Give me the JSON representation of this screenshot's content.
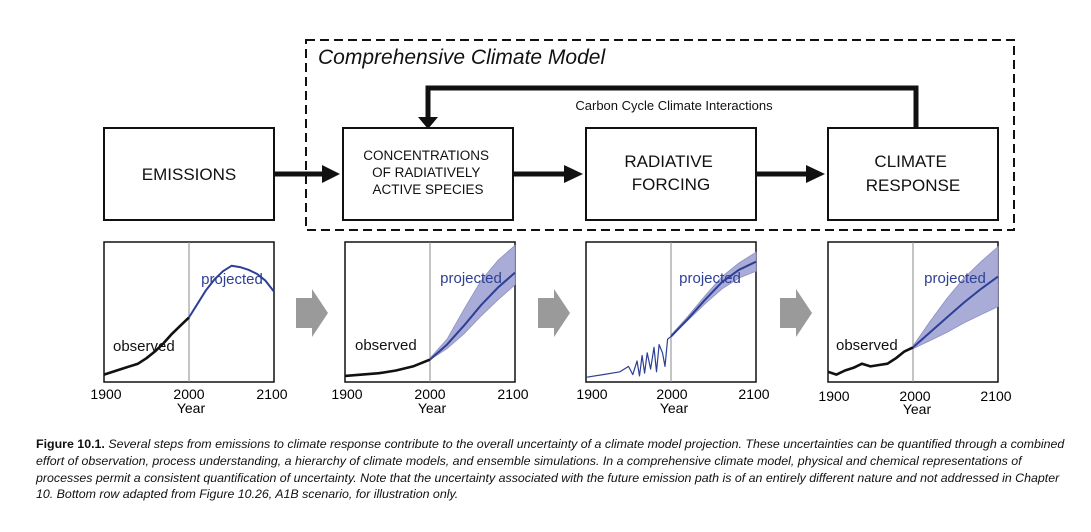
{
  "model": {
    "title": "Comprehensive Climate Model",
    "feedback_label": "Carbon Cycle Climate Interactions"
  },
  "boxes": {
    "emissions": [
      "EMISSIONS"
    ],
    "concentrations": [
      "CONCENTRATIONS",
      "OF RADIATIVELY",
      "ACTIVE SPECIES"
    ],
    "forcing": [
      "RADIATIVE",
      "FORCING"
    ],
    "response": [
      "CLIMATE",
      "RESPONSE"
    ]
  },
  "colors": {
    "observed": "#111111",
    "projected": "#2d3f96",
    "band": "#a9acd6",
    "frame": "#111111",
    "step_arrow": "#9a9a9a"
  },
  "chart_data": [
    {
      "type": "line",
      "name": "emissions",
      "x_ticks": [
        "1900",
        "2000",
        "2100"
      ],
      "xlabel": "Year",
      "annotations": [
        "observed",
        "projected"
      ],
      "uncertainty_band": false,
      "series": [
        {
          "name": "observed",
          "x": [
            1900,
            1920,
            1940,
            1950,
            1960,
            1970,
            1980,
            1990,
            2000
          ],
          "y": [
            0.04,
            0.08,
            0.12,
            0.16,
            0.21,
            0.27,
            0.34,
            0.4,
            0.46
          ]
        },
        {
          "name": "projected",
          "x": [
            2000,
            2010,
            2020,
            2030,
            2040,
            2050,
            2060,
            2070,
            2080,
            2090,
            2100
          ],
          "y": [
            0.46,
            0.56,
            0.66,
            0.74,
            0.8,
            0.84,
            0.83,
            0.81,
            0.78,
            0.73,
            0.65
          ]
        }
      ]
    },
    {
      "type": "line",
      "name": "concentrations",
      "x_ticks": [
        "1900",
        "2000",
        "2100"
      ],
      "xlabel": "",
      "annotations": [
        "observed",
        "projected"
      ],
      "uncertainty_band": true,
      "series": [
        {
          "name": "observed",
          "x": [
            1900,
            1920,
            1940,
            1960,
            1980,
            2000
          ],
          "y": [
            0.03,
            0.04,
            0.05,
            0.07,
            0.1,
            0.15
          ]
        },
        {
          "name": "projected",
          "x": [
            2000,
            2020,
            2040,
            2060,
            2080,
            2100
          ],
          "y": [
            0.15,
            0.26,
            0.4,
            0.55,
            0.68,
            0.79
          ]
        },
        {
          "name": "band_upper",
          "x": [
            2000,
            2020,
            2040,
            2060,
            2080,
            2100
          ],
          "y": [
            0.16,
            0.3,
            0.52,
            0.73,
            0.88,
            0.99
          ]
        },
        {
          "name": "band_lower",
          "x": [
            2000,
            2020,
            2040,
            2060,
            2080,
            2100
          ],
          "y": [
            0.15,
            0.23,
            0.34,
            0.47,
            0.59,
            0.7
          ]
        }
      ]
    },
    {
      "type": "line",
      "name": "radiative_forcing",
      "x_ticks": [
        "1900",
        "2000",
        "2100"
      ],
      "xlabel": "Year",
      "annotations": [
        "projected"
      ],
      "uncertainty_band": true,
      "series": [
        {
          "name": "observed",
          "x": [
            1900,
            1920,
            1940,
            1950,
            1955,
            1960,
            1963,
            1966,
            1969,
            1972,
            1976,
            1980,
            1983,
            1986,
            1990,
            1993,
            1996,
            2000
          ],
          "y": [
            0.02,
            0.04,
            0.06,
            0.1,
            0.04,
            0.14,
            0.03,
            0.18,
            0.05,
            0.2,
            0.08,
            0.24,
            0.06,
            0.26,
            0.2,
            0.1,
            0.3,
            0.32
          ]
        },
        {
          "name": "projected",
          "x": [
            2000,
            2020,
            2040,
            2060,
            2080,
            2100
          ],
          "y": [
            0.32,
            0.45,
            0.59,
            0.72,
            0.81,
            0.87
          ]
        },
        {
          "name": "band_upper",
          "x": [
            2000,
            2020,
            2040,
            2060,
            2080,
            2100
          ],
          "y": [
            0.33,
            0.47,
            0.62,
            0.76,
            0.86,
            0.94
          ]
        },
        {
          "name": "band_lower",
          "x": [
            2000,
            2020,
            2040,
            2060,
            2080,
            2100
          ],
          "y": [
            0.32,
            0.44,
            0.56,
            0.67,
            0.75,
            0.8
          ]
        }
      ]
    },
    {
      "type": "line",
      "name": "climate_response",
      "x_ticks": [
        "1900",
        "2000",
        "2100"
      ],
      "xlabel": "Year",
      "annotations": [
        "observed",
        "projected"
      ],
      "uncertainty_band": true,
      "series": [
        {
          "name": "observed",
          "x": [
            1900,
            1910,
            1920,
            1930,
            1940,
            1950,
            1960,
            1970,
            1980,
            1990,
            2000
          ],
          "y": [
            0.06,
            0.04,
            0.07,
            0.09,
            0.12,
            0.1,
            0.11,
            0.12,
            0.16,
            0.21,
            0.24
          ]
        },
        {
          "name": "projected",
          "x": [
            2000,
            2020,
            2040,
            2060,
            2080,
            2100
          ],
          "y": [
            0.24,
            0.35,
            0.46,
            0.57,
            0.67,
            0.76
          ]
        },
        {
          "name": "band_upper",
          "x": [
            2000,
            2020,
            2040,
            2060,
            2080,
            2100
          ],
          "y": [
            0.25,
            0.43,
            0.6,
            0.75,
            0.87,
            0.98
          ]
        },
        {
          "name": "band_lower",
          "x": [
            2000,
            2020,
            2040,
            2060,
            2080,
            2100
          ],
          "y": [
            0.23,
            0.29,
            0.35,
            0.42,
            0.48,
            0.54
          ]
        }
      ]
    }
  ],
  "caption": {
    "label": "Figure 10.1.",
    "text": "Several steps from emissions to climate response contribute to the overall uncertainty of a climate model projection. These uncertainties can be quantified through a combined effort of observation, process understanding, a hierarchy of climate models, and ensemble simulations. In a comprehensive climate model, physical and chemical representations of processes permit a consistent quantification of uncertainty. Note that the uncertainty associated with the future emission path is of an entirely different nature and not addressed in Chapter 10. Bottom row adapted from Figure 10.26, A1B scenario, for illustration only."
  }
}
